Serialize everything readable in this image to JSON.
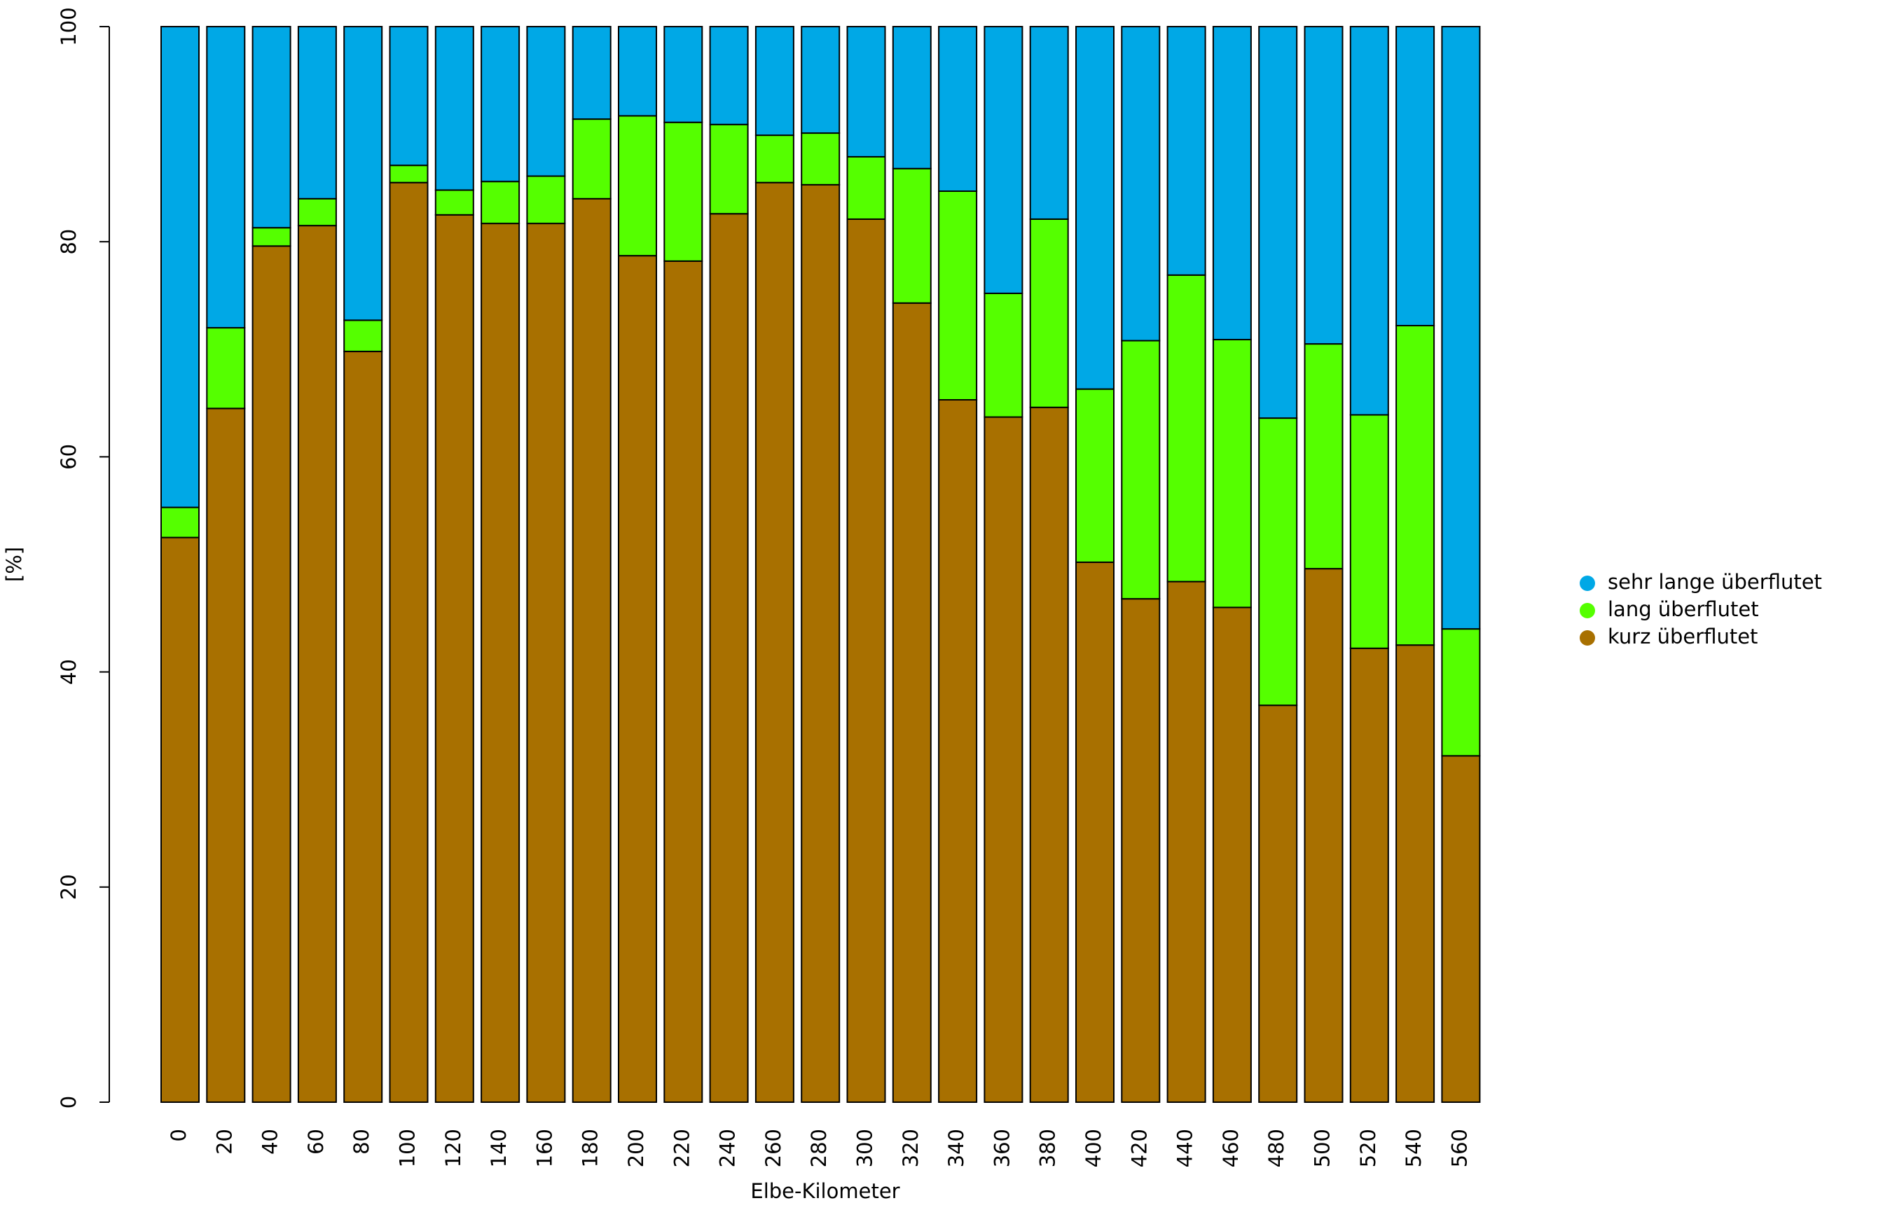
{
  "chart_data": {
    "type": "stacked_bar",
    "xlabel": "Elbe-Kilometer",
    "ylabel": "[%]",
    "categories": [
      "0",
      "20",
      "40",
      "60",
      "80",
      "100",
      "120",
      "140",
      "160",
      "180",
      "200",
      "220",
      "240",
      "260",
      "280",
      "300",
      "320",
      "340",
      "360",
      "380",
      "400",
      "420",
      "440",
      "460",
      "480",
      "500",
      "520",
      "540",
      "560"
    ],
    "series": [
      {
        "name": "kurz überflutet",
        "color": "#a87000",
        "values": [
          52.5,
          64.5,
          79.6,
          81.5,
          69.8,
          85.5,
          82.5,
          81.7,
          81.7,
          84.0,
          78.7,
          78.2,
          82.6,
          85.5,
          85.3,
          82.1,
          74.3,
          65.3,
          63.7,
          64.6,
          50.2,
          46.8,
          48.4,
          46.0,
          36.9,
          49.6,
          42.2,
          42.5,
          32.2
        ]
      },
      {
        "name": "lang überflutet",
        "color": "#55ff00",
        "values": [
          2.8,
          7.5,
          1.7,
          2.5,
          2.9,
          1.6,
          2.3,
          3.9,
          4.4,
          7.4,
          13.0,
          12.9,
          8.3,
          4.4,
          4.8,
          5.8,
          12.5,
          19.4,
          11.5,
          17.5,
          16.1,
          24.0,
          28.5,
          24.9,
          26.7,
          20.9,
          21.7,
          29.7,
          11.8
        ]
      },
      {
        "name": "sehr lange überflutet",
        "color": "#00a8e6",
        "values": [
          44.7,
          28.0,
          18.7,
          16.0,
          27.3,
          12.9,
          15.2,
          14.4,
          13.9,
          8.6,
          8.3,
          8.9,
          9.1,
          10.1,
          9.9,
          12.1,
          13.2,
          15.3,
          24.8,
          17.9,
          33.7,
          29.2,
          23.1,
          29.1,
          36.4,
          29.5,
          36.1,
          27.8,
          56.0
        ]
      }
    ],
    "ylim": [
      0,
      100
    ],
    "yticks": [
      0,
      20,
      40,
      60,
      80,
      100
    ],
    "legend": "right"
  }
}
